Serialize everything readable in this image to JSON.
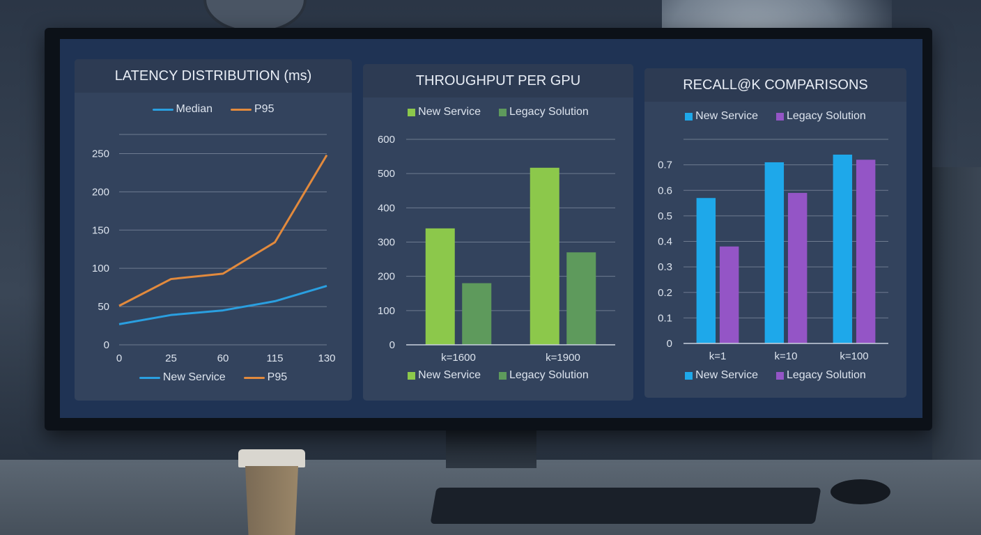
{
  "colors": {
    "median": "#2a9fe0",
    "p95": "#e28a3d",
    "new_service_green": "#8cc84b",
    "legacy_green": "#5e9a5c",
    "new_service_blue": "#1ea8ea",
    "legacy_purple": "#9455c6",
    "grid": "#6e7b90",
    "tick_text": "#dde4ee"
  },
  "chart_data": [
    {
      "type": "line",
      "title": "LATENCY DISTRIBUTION (ms)",
      "legend_top": [
        "Median",
        "P95"
      ],
      "legend_bottom": [
        "New Service",
        "P95"
      ],
      "x": [
        0,
        25,
        60,
        115,
        130
      ],
      "x_ticks": [
        "0",
        "25",
        "60",
        "115",
        "130"
      ],
      "series": [
        {
          "name": "Median",
          "values": [
            27,
            39,
            45,
            57,
            77
          ]
        },
        {
          "name": "P95",
          "values": [
            51,
            86,
            93,
            134,
            248
          ]
        }
      ],
      "ylim": [
        0,
        275
      ],
      "y_ticks": [
        0,
        50,
        100,
        150,
        200,
        250
      ],
      "grid": true
    },
    {
      "type": "bar",
      "title": "THROUGHPUT PER GPU",
      "legend_top": [
        "New Service",
        "Legacy Solution"
      ],
      "legend_bottom": [
        "New Service",
        "Legacy Solution"
      ],
      "categories": [
        "k=1600",
        "k=1900"
      ],
      "series": [
        {
          "name": "New Service",
          "values": [
            340,
            517
          ]
        },
        {
          "name": "Legacy Solution",
          "values": [
            180,
            270
          ]
        }
      ],
      "ylim": [
        0,
        600
      ],
      "y_ticks": [
        0,
        100,
        200,
        300,
        400,
        500,
        600
      ],
      "grid": true
    },
    {
      "type": "bar",
      "title": "RECALL@K COMPARISONS",
      "legend_top": [
        "New Service",
        "Legacy Solution"
      ],
      "legend_bottom": [
        "New Service",
        "Legacy Solution"
      ],
      "categories": [
        "k=1",
        "k=10",
        "k=100"
      ],
      "series": [
        {
          "name": "New Service",
          "values": [
            0.57,
            0.71,
            0.74
          ]
        },
        {
          "name": "Legacy Solution",
          "values": [
            0.38,
            0.59,
            0.72
          ]
        }
      ],
      "ylim": [
        0,
        0.8
      ],
      "y_ticks": [
        "0",
        "0.1",
        "0.2",
        "0.3",
        "0.4",
        "0.5",
        "0.6",
        "0.7"
      ],
      "grid": true
    }
  ]
}
